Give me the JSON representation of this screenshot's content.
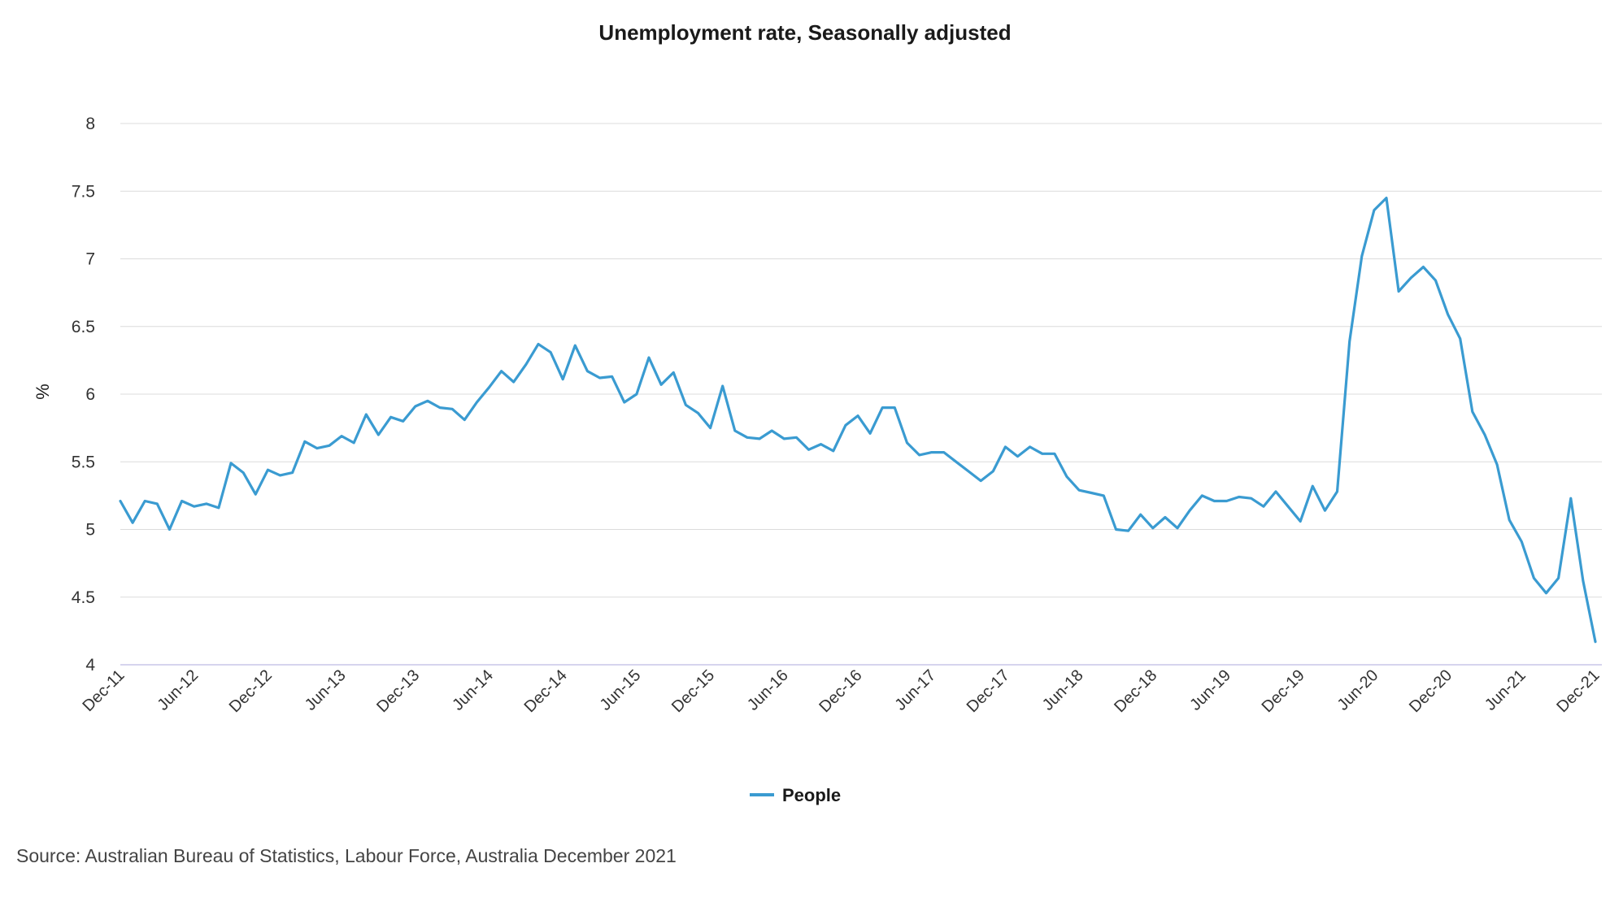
{
  "colors": {
    "series": "#3a9bd1",
    "grid": "#dcdcdc",
    "axis": "#c9c6e8"
  },
  "source": "Source: Australian Bureau of Statistics, Labour Force, Australia December 2021",
  "chart_data": {
    "type": "line",
    "title": "Unemployment rate, Seasonally adjusted",
    "xlabel": "",
    "ylabel": "%",
    "ylim": [
      4,
      8
    ],
    "yticks": [
      "4",
      "4.5",
      "5",
      "5.5",
      "6",
      "6.5",
      "7",
      "7.5",
      "8"
    ],
    "xticks": [
      "Dec-11",
      "Jun-12",
      "Dec-12",
      "Jun-13",
      "Dec-13",
      "Jun-14",
      "Dec-14",
      "Jun-15",
      "Dec-15",
      "Jun-16",
      "Dec-16",
      "Jun-17",
      "Dec-17",
      "Jun-18",
      "Dec-18",
      "Jun-19",
      "Dec-19",
      "Jun-20",
      "Dec-20",
      "Jun-21",
      "Dec-21"
    ],
    "grid": true,
    "legend": "bottom-center",
    "series": [
      {
        "name": "People",
        "x": [
          "Dec-11",
          "Jan-12",
          "Feb-12",
          "Mar-12",
          "Apr-12",
          "May-12",
          "Jun-12",
          "Jul-12",
          "Aug-12",
          "Sep-12",
          "Oct-12",
          "Nov-12",
          "Dec-12",
          "Jan-13",
          "Feb-13",
          "Mar-13",
          "Apr-13",
          "May-13",
          "Jun-13",
          "Jul-13",
          "Aug-13",
          "Sep-13",
          "Oct-13",
          "Nov-13",
          "Dec-13",
          "Jan-14",
          "Feb-14",
          "Mar-14",
          "Apr-14",
          "May-14",
          "Jun-14",
          "Jul-14",
          "Aug-14",
          "Sep-14",
          "Oct-14",
          "Nov-14",
          "Dec-14",
          "Jan-15",
          "Feb-15",
          "Mar-15",
          "Apr-15",
          "May-15",
          "Jun-15",
          "Jul-15",
          "Aug-15",
          "Sep-15",
          "Oct-15",
          "Nov-15",
          "Dec-15",
          "Jan-16",
          "Feb-16",
          "Mar-16",
          "Apr-16",
          "May-16",
          "Jun-16",
          "Jul-16",
          "Aug-16",
          "Sep-16",
          "Oct-16",
          "Nov-16",
          "Dec-16",
          "Jan-17",
          "Feb-17",
          "Mar-17",
          "Apr-17",
          "May-17",
          "Jun-17",
          "Jul-17",
          "Aug-17",
          "Sep-17",
          "Oct-17",
          "Nov-17",
          "Dec-17",
          "Jan-18",
          "Feb-18",
          "Mar-18",
          "Apr-18",
          "May-18",
          "Jun-18",
          "Jul-18",
          "Aug-18",
          "Sep-18",
          "Oct-18",
          "Nov-18",
          "Dec-18",
          "Jan-19",
          "Feb-19",
          "Mar-19",
          "Apr-19",
          "May-19",
          "Jun-19",
          "Jul-19",
          "Aug-19",
          "Sep-19",
          "Oct-19",
          "Nov-19",
          "Dec-19",
          "Jan-20",
          "Feb-20",
          "Mar-20",
          "Apr-20",
          "May-20",
          "Jun-20",
          "Jul-20",
          "Aug-20",
          "Sep-20",
          "Oct-20",
          "Nov-20",
          "Dec-20",
          "Jan-21",
          "Feb-21",
          "Mar-21",
          "Apr-21",
          "May-21",
          "Jun-21",
          "Jul-21",
          "Aug-21",
          "Sep-21",
          "Oct-21",
          "Nov-21",
          "Dec-21"
        ],
        "values": [
          5.21,
          5.05,
          5.21,
          5.19,
          5.0,
          5.21,
          5.17,
          5.19,
          5.16,
          5.49,
          5.42,
          5.26,
          5.44,
          5.4,
          5.42,
          5.65,
          5.6,
          5.62,
          5.69,
          5.64,
          5.85,
          5.7,
          5.83,
          5.8,
          5.91,
          5.95,
          5.9,
          5.89,
          5.81,
          5.94,
          6.05,
          6.17,
          6.09,
          6.22,
          6.37,
          6.31,
          6.11,
          6.36,
          6.17,
          6.12,
          6.13,
          5.94,
          6.0,
          6.27,
          6.07,
          6.16,
          5.92,
          5.86,
          5.75,
          6.06,
          5.73,
          5.68,
          5.67,
          5.73,
          5.67,
          5.68,
          5.59,
          5.63,
          5.58,
          5.77,
          5.84,
          5.71,
          5.9,
          5.9,
          5.64,
          5.55,
          5.57,
          5.57,
          5.5,
          5.43,
          5.36,
          5.43,
          5.61,
          5.54,
          5.61,
          5.56,
          5.56,
          5.39,
          5.29,
          5.27,
          5.25,
          5.0,
          4.99,
          5.11,
          5.01,
          5.09,
          5.01,
          5.14,
          5.25,
          5.21,
          5.21,
          5.24,
          5.23,
          5.17,
          5.28,
          5.17,
          5.06,
          5.32,
          5.14,
          5.28,
          6.39,
          7.02,
          7.36,
          7.45,
          6.76,
          6.86,
          6.94,
          6.84,
          6.59,
          6.41,
          5.87,
          5.7,
          5.48,
          5.07,
          4.91,
          4.64,
          4.53,
          4.64,
          5.23,
          4.62,
          4.17
        ]
      }
    ]
  }
}
